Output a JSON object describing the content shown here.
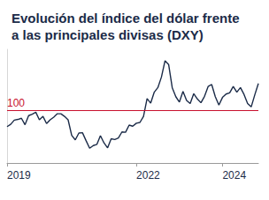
{
  "chart_data": {
    "type": "line",
    "title": "Evolución del índice del dólar frente a las principales divisas (DXY)",
    "categories": [
      "2019",
      null,
      null,
      null,
      null,
      null,
      null,
      null,
      null,
      null,
      null,
      null,
      null,
      null,
      null,
      null,
      null,
      null,
      null,
      null,
      null,
      null,
      null,
      null,
      null,
      null,
      null,
      null,
      null,
      null,
      null,
      null,
      null,
      null,
      null,
      null,
      "2022",
      null,
      null,
      null,
      null,
      null,
      null,
      null,
      null,
      null,
      null,
      null,
      null,
      null,
      null,
      null,
      null,
      null,
      null,
      null,
      null,
      null,
      null,
      null,
      "2024",
      null,
      null,
      null,
      null,
      null,
      null,
      null,
      null,
      null,
      null
    ],
    "values": [
      95.6,
      96.2,
      97.3,
      97.5,
      97.8,
      96.1,
      98.5,
      98.9,
      99.4,
      97.4,
      98.3,
      96.4,
      97.4,
      98.1,
      99.0,
      99.0,
      98.3,
      97.4,
      93.3,
      92.1,
      93.9,
      94.0,
      91.9,
      89.9,
      90.6,
      90.9,
      93.2,
      91.3,
      90.0,
      92.4,
      92.2,
      92.6,
      94.2,
      94.1,
      96.0,
      95.7,
      96.5,
      96.7,
      98.3,
      103.0,
      101.8,
      104.7,
      105.9,
      108.7,
      113.0,
      112.0,
      105.9,
      103.5,
      102.1,
      104.9,
      102.5,
      101.7,
      104.3,
      102.9,
      101.9,
      103.6,
      106.2,
      106.7,
      103.5,
      101.3,
      103.3,
      104.2,
      104.5,
      106.2,
      104.7,
      105.9,
      104.1,
      101.7,
      100.8,
      104.0,
      107.0
    ],
    "color": "#1b2b48",
    "ylim": [
      86,
      116
    ],
    "yticks": [],
    "tick_labels": "x",
    "grid": false,
    "reference_line": {
      "value": 100,
      "label": "100",
      "color": "#c8102e"
    }
  }
}
